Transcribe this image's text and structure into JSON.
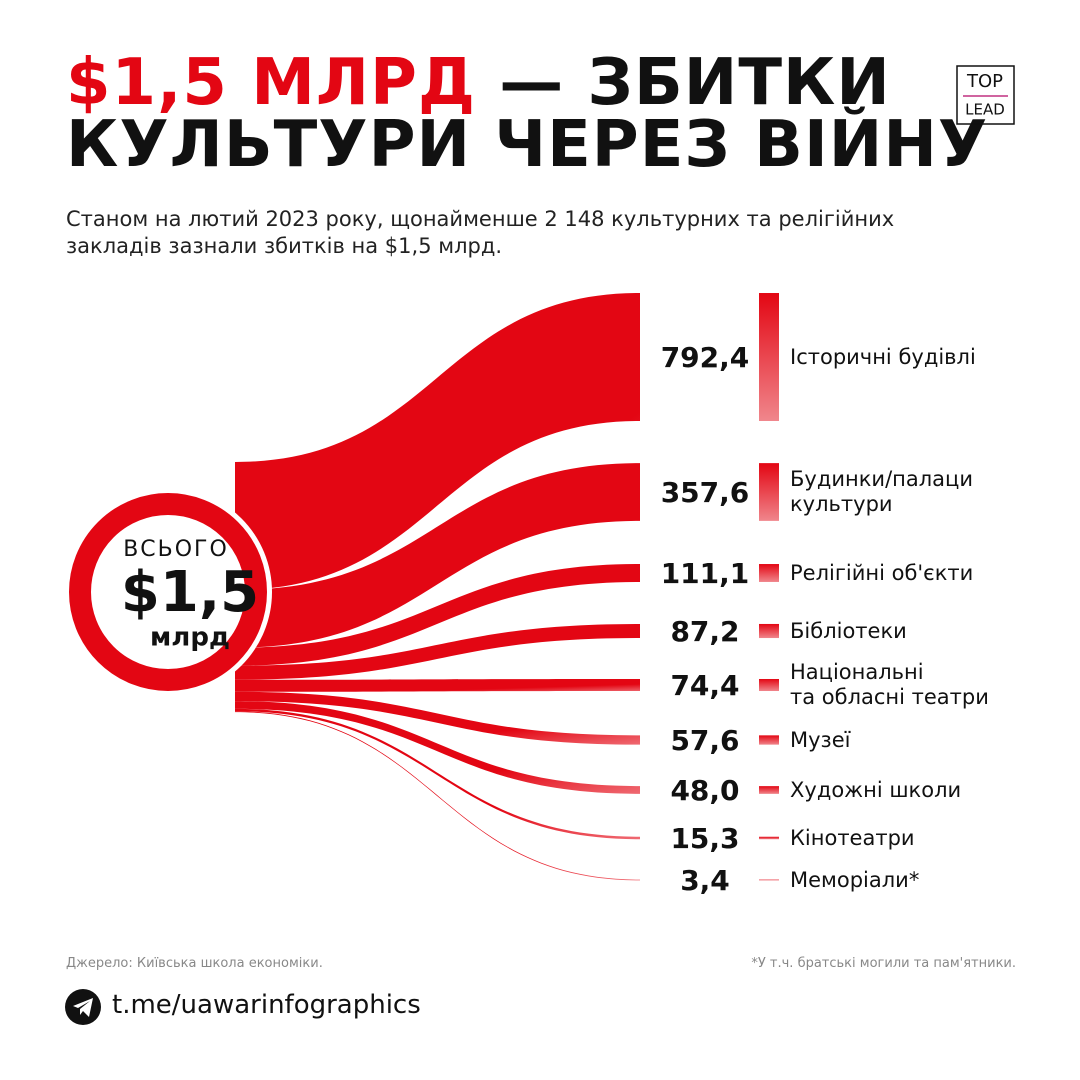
{
  "chart_data": {
    "type": "sankey",
    "title_highlight": "$1,5 МЛРД",
    "title": "— ЗБИТКИ\nКУЛЬТУРИ ЧЕРЕЗ ВІЙНУ",
    "subtitle": "Станом на лютий 2023 року, щонайменше 2 148 культурних та релігійних\nзакладів зазнали збитків на $1,5 млрд.",
    "center_top": "ВСЬОГО",
    "center_value": "$1,5",
    "center_unit": "млрд",
    "categories": [
      "Історичні будівлі",
      "Будинки/палаци\nкультури",
      "Релігійні об'єкти",
      "Бібліотеки",
      "Національні\nта обласні театри",
      "Музеї",
      "Художні школи",
      "Кінотеатри",
      "Меморіали*"
    ],
    "values": [
      792.4,
      357.6,
      111.1,
      87.2,
      74.4,
      57.6,
      48.0,
      15.3,
      3.4
    ],
    "value_labels": [
      "792,4",
      "357,6",
      "111,1",
      "87,2",
      "74,4",
      "57,6",
      "48,0",
      "15,3",
      "3,4"
    ],
    "color": "#e30613",
    "source": "Джерело: Київська школа економіки.",
    "footnote": "*У т.ч. братські могили та пам'ятники.",
    "link": "t.me/uawarinfographics",
    "logo_top": "TOP",
    "logo_bottom": "LEAD"
  }
}
